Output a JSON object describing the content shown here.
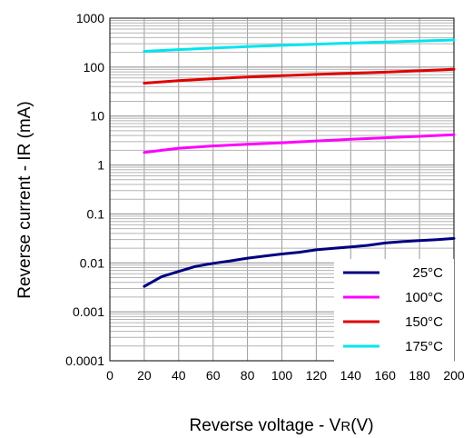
{
  "chart_data": {
    "type": "line",
    "title": "",
    "xlabel": "Reverse voltage - V",
    "xlabel_sub": "R",
    "xlabel_suffix": "(V)",
    "ylabel": "Reverse current - IR (mA)",
    "y_scale": "log",
    "xlim": [
      0,
      200
    ],
    "ylim": [
      0.0001,
      1000
    ],
    "grid": true,
    "legend_position": "bottom-right",
    "x_ticks": [
      "0",
      "20",
      "40",
      "60",
      "80",
      "100",
      "120",
      "140",
      "160",
      "180",
      "200"
    ],
    "y_ticks": [
      "0.0001",
      "0.001",
      "0.01",
      "0.1",
      "1",
      "10",
      "100",
      "1000"
    ],
    "series": [
      {
        "name": "25°C",
        "color": "#000080",
        "x": [
          20,
          30,
          40,
          50,
          60,
          70,
          80,
          90,
          100,
          110,
          120,
          130,
          140,
          150,
          160,
          170,
          180,
          190,
          200
        ],
        "y": [
          0.0033,
          0.0052,
          0.0067,
          0.0085,
          0.0098,
          0.011,
          0.0125,
          0.0138,
          0.0152,
          0.0165,
          0.0185,
          0.0198,
          0.0212,
          0.0228,
          0.0255,
          0.0272,
          0.0285,
          0.0298,
          0.0315
        ]
      },
      {
        "name": "100°C",
        "color": "#ff00ff",
        "x": [
          20,
          40,
          60,
          80,
          100,
          120,
          140,
          160,
          180,
          200
        ],
        "y": [
          1.8,
          2.2,
          2.45,
          2.65,
          2.85,
          3.1,
          3.35,
          3.6,
          3.85,
          4.15
        ]
      },
      {
        "name": "150°C",
        "color": "#e00000",
        "x": [
          20,
          40,
          60,
          80,
          100,
          120,
          140,
          160,
          180,
          200
        ],
        "y": [
          47,
          53,
          58,
          63,
          67,
          71,
          75,
          79,
          84,
          90
        ]
      },
      {
        "name": "175°C",
        "color": "#00e5ee",
        "x": [
          20,
          40,
          60,
          80,
          100,
          120,
          140,
          160,
          180,
          200
        ],
        "y": [
          210,
          228,
          245,
          262,
          278,
          294,
          310,
          326,
          342,
          358
        ]
      }
    ]
  }
}
